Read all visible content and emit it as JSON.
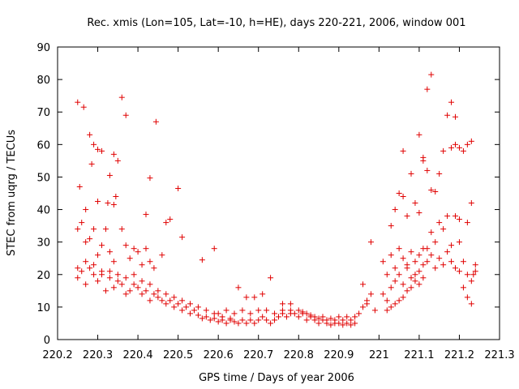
{
  "chart_data": {
    "type": "scatter",
    "title": "Rec. xmis (Lon=105, Lat=-10, h=HE), days 220-221, 2006, window 001",
    "xlabel": "GPS time / Days of year 2006",
    "ylabel": "STEC from uqrg / TECUs",
    "xlim": [
      220.2,
      221.3
    ],
    "ylim": [
      0,
      90
    ],
    "xticks": [
      "220.2",
      "220.3",
      "220.4",
      "220.5",
      "220.6",
      "220.7",
      "220.8",
      "220.9",
      "221",
      "221.1",
      "221.2",
      "221.3"
    ],
    "yticks": [
      "0",
      "10",
      "20",
      "30",
      "40",
      "50",
      "60",
      "70",
      "80",
      "90"
    ],
    "grid": false,
    "legend": "none",
    "marker": "plus",
    "color": "#e00000",
    "series": [
      {
        "points": [
          [
            220.25,
            73
          ],
          [
            220.265,
            71.5
          ],
          [
            220.28,
            63
          ],
          [
            220.29,
            60
          ],
          [
            220.3,
            58.5
          ],
          [
            220.31,
            58
          ],
          [
            220.255,
            47
          ],
          [
            220.27,
            40
          ],
          [
            220.285,
            54
          ],
          [
            220.3,
            42.5
          ],
          [
            220.33,
            50.5
          ],
          [
            220.34,
            57
          ],
          [
            220.345,
            44
          ],
          [
            220.35,
            55
          ],
          [
            220.36,
            74.5
          ],
          [
            220.37,
            69
          ],
          [
            220.325,
            42
          ],
          [
            220.34,
            41.5
          ],
          [
            220.42,
            38.5
          ],
          [
            220.43,
            49.7
          ],
          [
            220.445,
            67
          ],
          [
            220.5,
            46.5
          ],
          [
            220.48,
            37
          ],
          [
            220.47,
            36
          ],
          [
            220.51,
            31.5
          ],
          [
            220.59,
            28
          ],
          [
            220.56,
            24.5
          ],
          [
            220.25,
            34
          ],
          [
            220.26,
            36
          ],
          [
            220.27,
            30
          ],
          [
            220.28,
            31
          ],
          [
            220.29,
            34
          ],
          [
            220.3,
            26
          ],
          [
            220.31,
            29
          ],
          [
            220.32,
            34
          ],
          [
            220.33,
            27
          ],
          [
            220.34,
            24
          ],
          [
            220.36,
            34
          ],
          [
            220.37,
            29
          ],
          [
            220.38,
            25
          ],
          [
            220.39,
            28
          ],
          [
            220.4,
            27
          ],
          [
            220.41,
            23
          ],
          [
            220.42,
            28
          ],
          [
            220.43,
            24
          ],
          [
            220.44,
            22
          ],
          [
            220.46,
            26
          ],
          [
            220.25,
            19
          ],
          [
            220.26,
            21
          ],
          [
            220.27,
            17
          ],
          [
            220.28,
            22
          ],
          [
            220.29,
            20
          ],
          [
            220.3,
            18
          ],
          [
            220.31,
            21
          ],
          [
            220.32,
            15
          ],
          [
            220.33,
            19
          ],
          [
            220.34,
            16
          ],
          [
            220.35,
            20
          ],
          [
            220.36,
            17
          ],
          [
            220.37,
            19
          ],
          [
            220.38,
            15
          ],
          [
            220.39,
            17
          ],
          [
            220.4,
            16
          ],
          [
            220.41,
            14
          ],
          [
            220.42,
            15
          ],
          [
            220.43,
            12
          ],
          [
            220.44,
            14
          ],
          [
            220.45,
            13
          ],
          [
            220.46,
            12
          ],
          [
            220.47,
            11
          ],
          [
            220.48,
            12
          ],
          [
            220.49,
            10
          ],
          [
            220.5,
            11
          ],
          [
            220.51,
            9
          ],
          [
            220.52,
            10
          ],
          [
            220.53,
            8
          ],
          [
            220.54,
            9
          ],
          [
            220.25,
            22
          ],
          [
            220.27,
            24
          ],
          [
            220.29,
            23
          ],
          [
            220.31,
            20
          ],
          [
            220.33,
            21
          ],
          [
            220.35,
            18
          ],
          [
            220.37,
            14
          ],
          [
            220.39,
            20
          ],
          [
            220.41,
            18
          ],
          [
            220.43,
            17
          ],
          [
            220.45,
            15
          ],
          [
            220.47,
            14
          ],
          [
            220.49,
            13
          ],
          [
            220.51,
            12
          ],
          [
            220.53,
            11
          ],
          [
            220.55,
            10
          ],
          [
            220.57,
            9
          ],
          [
            220.59,
            8
          ],
          [
            220.61,
            7
          ],
          [
            220.63,
            6.5
          ],
          [
            220.55,
            7.5
          ],
          [
            220.56,
            6.5
          ],
          [
            220.57,
            7
          ],
          [
            220.58,
            6
          ],
          [
            220.59,
            6.5
          ],
          [
            220.6,
            5.5
          ],
          [
            220.61,
            6
          ],
          [
            220.62,
            5
          ],
          [
            220.63,
            6
          ],
          [
            220.64,
            5.5
          ],
          [
            220.65,
            16
          ],
          [
            220.67,
            13
          ],
          [
            220.69,
            13
          ],
          [
            220.71,
            14
          ],
          [
            220.73,
            19
          ],
          [
            220.76,
            11
          ],
          [
            220.78,
            11
          ],
          [
            220.65,
            5
          ],
          [
            220.66,
            6
          ],
          [
            220.67,
            5
          ],
          [
            220.68,
            6
          ],
          [
            220.69,
            5
          ],
          [
            220.7,
            6
          ],
          [
            220.71,
            7
          ],
          [
            220.72,
            6
          ],
          [
            220.73,
            5
          ],
          [
            220.74,
            6
          ],
          [
            220.6,
            8
          ],
          [
            220.62,
            9
          ],
          [
            220.64,
            8
          ],
          [
            220.66,
            9
          ],
          [
            220.68,
            8
          ],
          [
            220.7,
            9
          ],
          [
            220.72,
            9
          ],
          [
            220.74,
            8
          ],
          [
            220.76,
            9
          ],
          [
            220.78,
            8
          ],
          [
            220.75,
            7
          ],
          [
            220.76,
            8
          ],
          [
            220.77,
            7
          ],
          [
            220.78,
            9
          ],
          [
            220.79,
            8
          ],
          [
            220.8,
            7
          ],
          [
            220.81,
            8
          ],
          [
            220.82,
            6
          ],
          [
            220.83,
            7
          ],
          [
            220.84,
            6
          ],
          [
            220.8,
            9
          ],
          [
            220.81,
            8.5
          ],
          [
            220.82,
            8
          ],
          [
            220.83,
            7.5
          ],
          [
            220.84,
            7
          ],
          [
            220.85,
            6.5
          ],
          [
            220.86,
            7
          ],
          [
            220.87,
            6
          ],
          [
            220.88,
            6.5
          ],
          [
            220.89,
            5
          ],
          [
            220.85,
            5
          ],
          [
            220.86,
            6
          ],
          [
            220.87,
            5
          ],
          [
            220.88,
            4.5
          ],
          [
            220.89,
            6
          ],
          [
            220.9,
            5
          ],
          [
            220.91,
            4.5
          ],
          [
            220.92,
            5
          ],
          [
            220.93,
            4.5
          ],
          [
            220.94,
            5
          ],
          [
            220.9,
            7
          ],
          [
            220.91,
            6
          ],
          [
            220.92,
            7
          ],
          [
            220.93,
            6
          ],
          [
            220.94,
            7
          ],
          [
            220.95,
            8
          ],
          [
            220.96,
            10
          ],
          [
            220.97,
            12
          ],
          [
            220.98,
            14
          ],
          [
            220.99,
            9
          ],
          [
            220.96,
            17
          ],
          [
            220.98,
            30
          ],
          [
            220.97,
            11
          ],
          [
            221.01,
            14
          ],
          [
            221.02,
            12
          ],
          [
            221.03,
            16
          ],
          [
            221.04,
            18
          ],
          [
            221.05,
            20
          ],
          [
            221.06,
            17
          ],
          [
            221.07,
            22
          ],
          [
            221.08,
            19
          ],
          [
            221.09,
            24
          ],
          [
            221.1,
            21
          ],
          [
            221.01,
            24
          ],
          [
            221.02,
            20
          ],
          [
            221.03,
            26
          ],
          [
            221.04,
            22
          ],
          [
            221.05,
            28
          ],
          [
            221.06,
            25
          ],
          [
            221.07,
            23
          ],
          [
            221.08,
            27
          ],
          [
            221.09,
            20
          ],
          [
            221.1,
            26
          ],
          [
            221.02,
            9
          ],
          [
            221.03,
            10
          ],
          [
            221.04,
            11
          ],
          [
            221.05,
            12
          ],
          [
            221.06,
            13
          ],
          [
            221.07,
            15
          ],
          [
            221.08,
            16
          ],
          [
            221.09,
            18
          ],
          [
            221.1,
            17
          ],
          [
            221.11,
            19
          ],
          [
            221.03,
            35
          ],
          [
            221.04,
            40
          ],
          [
            221.05,
            45
          ],
          [
            221.06,
            44
          ],
          [
            221.07,
            38
          ],
          [
            221.08,
            51
          ],
          [
            221.09,
            42
          ],
          [
            221.1,
            63
          ],
          [
            221.11,
            55
          ],
          [
            221.12,
            52
          ],
          [
            221.06,
            58
          ],
          [
            221.1,
            39
          ],
          [
            221.11,
            56
          ],
          [
            221.12,
            77
          ],
          [
            221.13,
            81.5
          ],
          [
            221.14,
            45.5
          ],
          [
            221.13,
            46
          ],
          [
            221.15,
            51
          ],
          [
            221.16,
            58
          ],
          [
            221.17,
            69
          ],
          [
            221.11,
            23
          ],
          [
            221.12,
            28
          ],
          [
            221.13,
            33
          ],
          [
            221.14,
            30
          ],
          [
            221.15,
            36
          ],
          [
            221.16,
            34
          ],
          [
            221.17,
            38
          ],
          [
            221.18,
            29
          ],
          [
            221.19,
            38
          ],
          [
            221.2,
            37
          ],
          [
            221.11,
            28
          ],
          [
            221.12,
            24
          ],
          [
            221.13,
            26
          ],
          [
            221.14,
            22
          ],
          [
            221.15,
            25
          ],
          [
            221.16,
            23
          ],
          [
            221.17,
            27
          ],
          [
            221.18,
            24
          ],
          [
            221.19,
            22
          ],
          [
            221.2,
            21
          ],
          [
            221.18,
            73
          ],
          [
            221.19,
            68.5
          ],
          [
            221.2,
            59
          ],
          [
            221.21,
            58
          ],
          [
            221.22,
            60
          ],
          [
            221.23,
            61
          ],
          [
            221.22,
            36
          ],
          [
            221.23,
            42
          ],
          [
            221.18,
            59
          ],
          [
            221.19,
            60
          ],
          [
            221.2,
            30
          ],
          [
            221.21,
            24
          ],
          [
            221.22,
            20
          ],
          [
            221.23,
            18
          ],
          [
            221.24,
            21
          ],
          [
            221.21,
            16
          ],
          [
            221.22,
            13
          ],
          [
            221.23,
            11
          ],
          [
            221.24,
            23
          ],
          [
            221.235,
            20
          ]
        ]
      }
    ]
  }
}
